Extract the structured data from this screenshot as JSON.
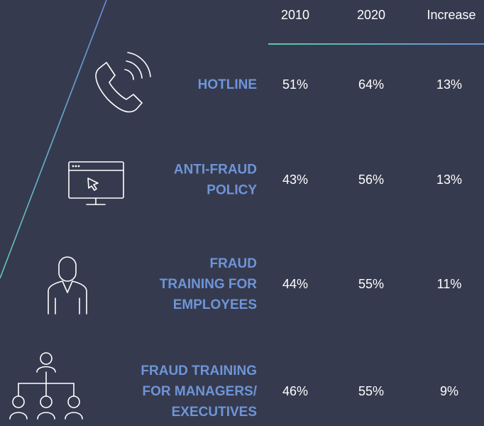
{
  "table": {
    "header": [
      "2010",
      "2020",
      "Increase"
    ],
    "rows": [
      {
        "label": [
          "HOTLINE"
        ],
        "values": [
          "51%",
          "64%",
          "13%"
        ]
      },
      {
        "label": [
          "ANTI-FRAUD",
          "POLICY"
        ],
        "values": [
          "43%",
          "56%",
          "13%"
        ]
      },
      {
        "label": [
          "FRAUD",
          "TRAINING FOR",
          "EMPLOYEES"
        ],
        "values": [
          "44%",
          "55%",
          "11%"
        ]
      },
      {
        "label": [
          "FRAUD TRAINING",
          "FOR MANAGERS/",
          "EXECUTIVES"
        ],
        "values": [
          "46%",
          "55%",
          "9%"
        ]
      }
    ]
  }
}
